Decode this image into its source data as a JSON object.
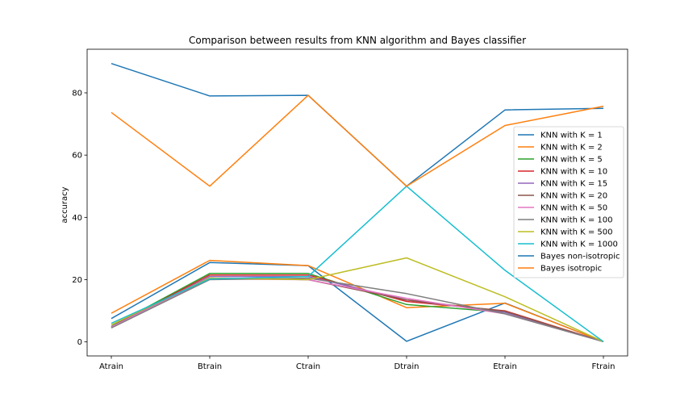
{
  "chart_data": {
    "type": "line",
    "title": "Comparison between results from KNN algorithm and Bayes classifier",
    "xlabel": "",
    "ylabel": "accuracy",
    "categories": [
      "Atrain",
      "Btrain",
      "Ctrain",
      "Dtrain",
      "Etrain",
      "Ftrain"
    ],
    "ylim": [
      -4.5,
      94
    ],
    "yticks": [
      0,
      20,
      40,
      60,
      80
    ],
    "grid": false,
    "legend_position": "center-right",
    "series": [
      {
        "name": "KNN with K = 1",
        "color": "#1f77b4",
        "values": [
          7.5,
          25.5,
          24.5,
          0.2,
          12.5,
          0.1
        ]
      },
      {
        "name": "KNN with K = 2",
        "color": "#ff7f0e",
        "values": [
          9.2,
          26.2,
          24.5,
          11.0,
          12.4,
          0.1
        ]
      },
      {
        "name": "KNN with K = 5",
        "color": "#2ca02c",
        "values": [
          5.0,
          22.0,
          22.0,
          12.0,
          9.5,
          0.1
        ]
      },
      {
        "name": "KNN with K = 10",
        "color": "#d62728",
        "values": [
          4.8,
          21.5,
          21.5,
          13.0,
          10.0,
          0.1
        ]
      },
      {
        "name": "KNN with K = 15",
        "color": "#9467bd",
        "values": [
          4.8,
          21.0,
          21.0,
          13.5,
          9.5,
          0.1
        ]
      },
      {
        "name": "KNN with K = 20",
        "color": "#8c564b",
        "values": [
          4.6,
          20.5,
          20.0,
          13.5,
          9.8,
          0.1
        ]
      },
      {
        "name": "KNN with K = 50",
        "color": "#e377c2",
        "values": [
          4.8,
          20.2,
          20.0,
          14.0,
          9.0,
          0.1
        ]
      },
      {
        "name": "KNN with K = 100",
        "color": "#7f7f7f",
        "values": [
          4.5,
          20.0,
          20.5,
          15.5,
          9.0,
          0.1
        ]
      },
      {
        "name": "KNN with K = 500",
        "color": "#bcbd22",
        "values": [
          5.5,
          20.5,
          20.0,
          27.0,
          14.5,
          0.1
        ]
      },
      {
        "name": "KNN with K = 1000",
        "color": "#17becf",
        "values": [
          6.0,
          20.2,
          21.0,
          50.0,
          23.0,
          0.1
        ]
      },
      {
        "name": "Bayes non-isotropic",
        "color": "#1f77b4",
        "values": [
          89.4,
          79.0,
          79.2,
          50.0,
          74.5,
          75.0
        ]
      },
      {
        "name": "Bayes isotropic",
        "color": "#ff7f0e",
        "values": [
          73.7,
          50.0,
          79.2,
          50.0,
          69.5,
          75.7
        ]
      }
    ]
  }
}
